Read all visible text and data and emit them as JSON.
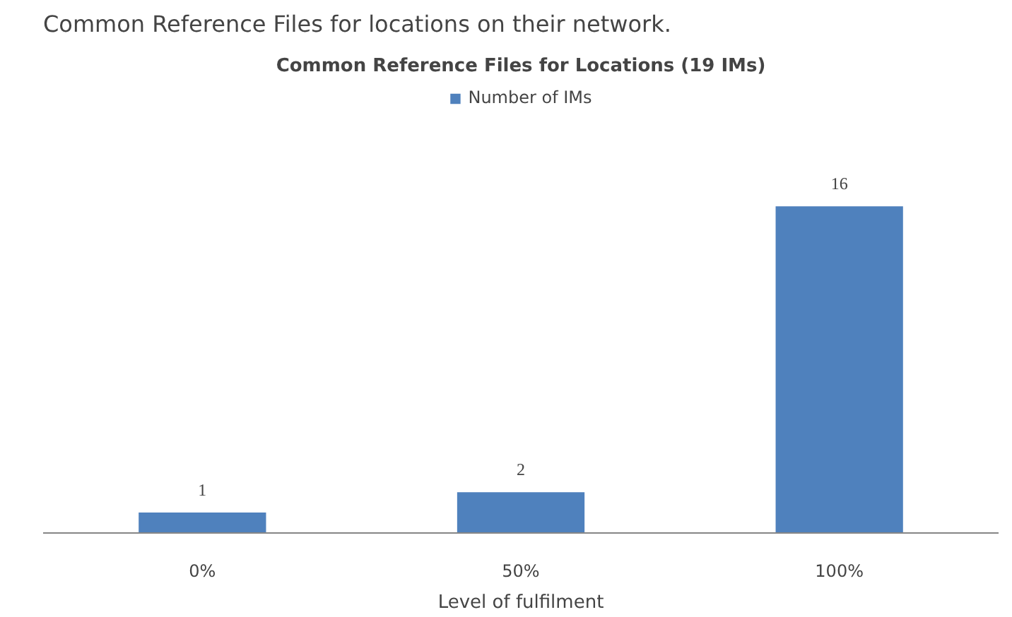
{
  "chart_data": {
    "type": "bar",
    "title": "Common Reference Files for Locations (19 IMs)",
    "xlabel": "Level of fulfilment",
    "annotations": [
      "Common Reference Files for locations on their network."
    ],
    "categories": [
      "0%",
      "50%",
      "100%"
    ],
    "series": [
      {
        "name": "Number of IMs",
        "color": "#4f81bd",
        "values": [
          1,
          2,
          16
        ]
      }
    ],
    "data_labels": true,
    "legend": "top",
    "grid": false
  }
}
